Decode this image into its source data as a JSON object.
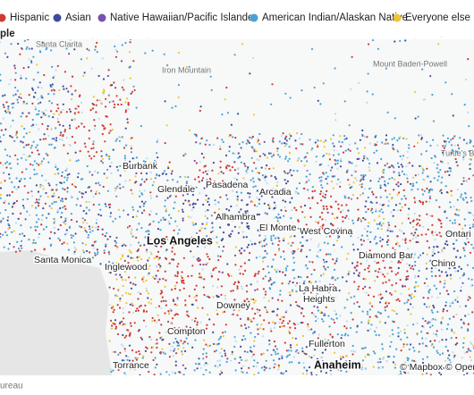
{
  "legend": {
    "items": [
      {
        "label": "Hispanic",
        "color": "#cf3a33"
      },
      {
        "label": "Asian",
        "color": "#3c4c9c"
      },
      {
        "label": "Native Hawaiian/Pacific Islander",
        "color": "#7a4fae"
      },
      {
        "label": "American Indian/Alaskan Native",
        "color": "#4aa2d6"
      },
      {
        "label": "Everyone else",
        "color": "#f0c534"
      }
    ],
    "note": "ple"
  },
  "map": {
    "faded_label": "Santa Clarita",
    "terrain_labels": [
      "Iron Mountain",
      "Mount Baden-Powell",
      "Turtle's B"
    ],
    "places": [
      "Burbank",
      "Glendale",
      "Pasadena",
      "Arcadia",
      "Alhambra",
      "El Monte",
      "West Covina",
      "Santa Monica",
      "Diamond Bar",
      "Ontari",
      "Chino",
      "Inglewood",
      "La Habra",
      "Heights",
      "Downey",
      "Compton",
      "Fullerton",
      "Torrance"
    ],
    "major_places": [
      "Los Angeles",
      "Anaheim"
    ],
    "attribution": "© Mapbox © OpenSt"
  },
  "footer": {
    "source": "ureau"
  }
}
